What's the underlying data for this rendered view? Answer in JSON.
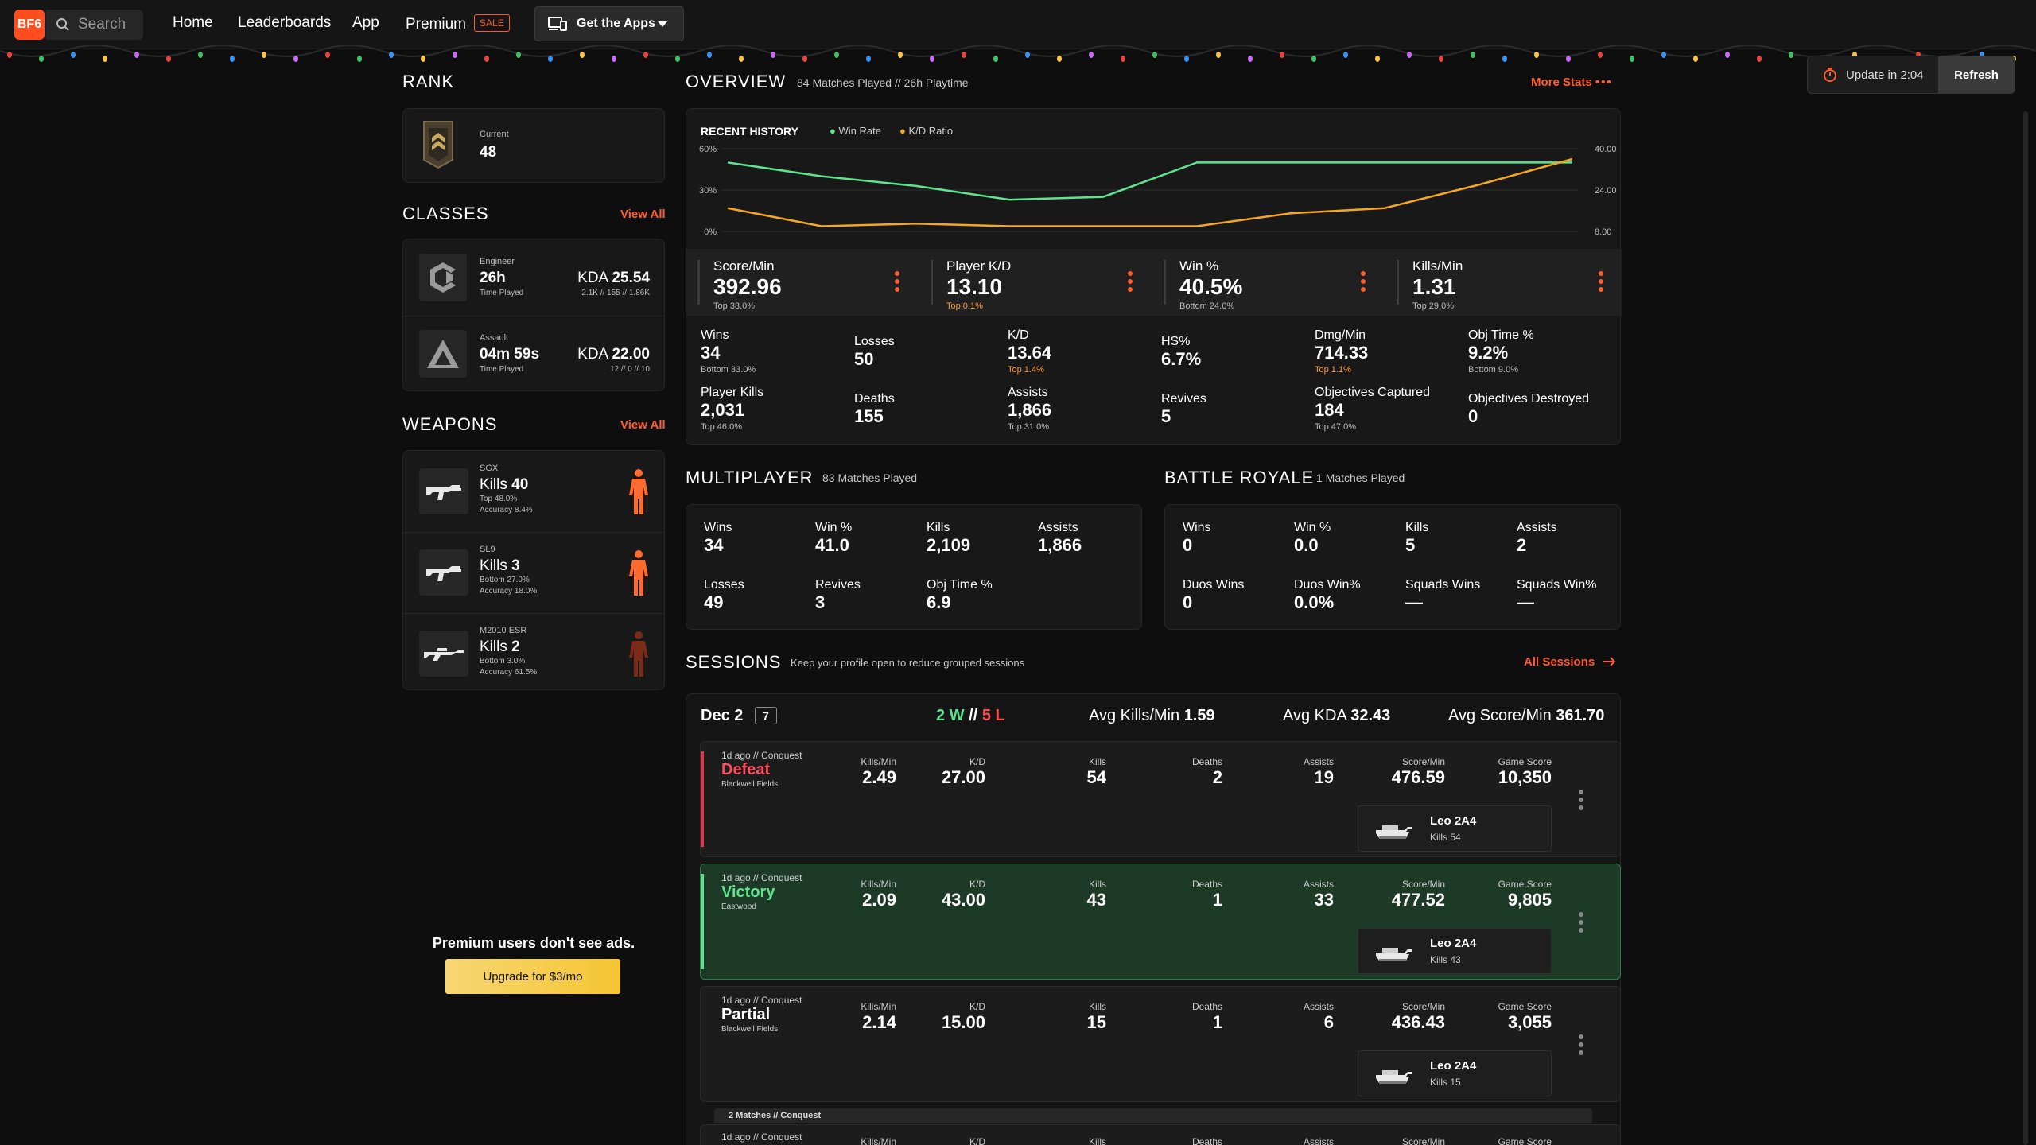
{
  "nav": {
    "logo": "BF6",
    "search_placeholder": "Search",
    "links": [
      "Home",
      "Leaderboards",
      "App",
      "Premium"
    ],
    "sale_badge": "SALE",
    "get_apps": "Get the Apps",
    "update": "Update in 2:04",
    "refresh": "Refresh"
  },
  "rank": {
    "title": "RANK",
    "label": "Current",
    "value": "48"
  },
  "classes": {
    "title": "CLASSES",
    "view_all": "View All",
    "items": [
      {
        "name": "Engineer",
        "time": "26h",
        "time_label": "Time Played",
        "kda_label": "KDA",
        "kda": "25.54",
        "detail": "2.1K // 155 // 1.86K"
      },
      {
        "name": "Assault",
        "time": "04m 59s",
        "time_label": "Time Played",
        "kda_label": "KDA",
        "kda": "22.00",
        "detail": "12 // 0 // 10"
      }
    ]
  },
  "weapons": {
    "title": "WEAPONS",
    "view_all": "View All",
    "items": [
      {
        "name": "SGX",
        "kills_label": "Kills",
        "kills": "40",
        "rank": "Top 48.0%",
        "accuracy": "Accuracy 8.4%"
      },
      {
        "name": "SL9",
        "kills_label": "Kills",
        "kills": "3",
        "rank": "Bottom 27.0%",
        "accuracy": "Accuracy 18.0%"
      },
      {
        "name": "M2010 ESR",
        "kills_label": "Kills",
        "kills": "2",
        "rank": "Bottom 3.0%",
        "accuracy": "Accuracy 61.5%"
      }
    ]
  },
  "ad": {
    "text": "Premium users don't see ads.",
    "button": "Upgrade for $3/mo"
  },
  "overview": {
    "title": "OVERVIEW",
    "subtitle": "84 Matches Played // 26h Playtime",
    "more_stats": "More Stats",
    "recent_history": "RECENT HISTORY",
    "legend_win": "Win Rate",
    "legend_kd": "K/D Ratio",
    "top_stats": [
      {
        "label": "Score/Min",
        "value": "392.96",
        "rank": "Top 38.0%"
      },
      {
        "label": "Player K/D",
        "value": "13.10",
        "rank": "Top 0.1%"
      },
      {
        "label": "Win %",
        "value": "40.5%",
        "rank": "Bottom 24.0%"
      },
      {
        "label": "Kills/Min",
        "value": "1.31",
        "rank": "Top 29.0%"
      }
    ],
    "grid": [
      {
        "label": "Wins",
        "value": "34",
        "rank": "Bottom 33.0%"
      },
      {
        "label": "Losses",
        "value": "50",
        "rank": ""
      },
      {
        "label": "K/D",
        "value": "13.64",
        "rank": "Top 1.4%"
      },
      {
        "label": "HS%",
        "value": "6.7%",
        "rank": ""
      },
      {
        "label": "Dmg/Min",
        "value": "714.33",
        "rank": "Top 1.1%"
      },
      {
        "label": "Obj Time %",
        "value": "9.2%",
        "rank": "Bottom 9.0%"
      },
      {
        "label": "Player Kills",
        "value": "2,031",
        "rank": "Top 46.0%"
      },
      {
        "label": "Deaths",
        "value": "155",
        "rank": ""
      },
      {
        "label": "Assists",
        "value": "1,866",
        "rank": "Top 31.0%"
      },
      {
        "label": "Revives",
        "value": "5",
        "rank": ""
      },
      {
        "label": "Objectives Captured",
        "value": "184",
        "rank": "Top 47.0%"
      },
      {
        "label": "Objectives Destroyed",
        "value": "0",
        "rank": ""
      }
    ]
  },
  "chart_data": {
    "type": "line",
    "x": [
      1,
      2,
      3,
      4,
      5,
      6,
      7,
      8,
      9,
      10
    ],
    "series": [
      {
        "name": "Win Rate",
        "color": "#5ee38f",
        "axis": "left",
        "values": [
          50,
          40,
          33,
          23,
          25,
          50,
          50,
          50,
          50,
          50
        ]
      },
      {
        "name": "K/D Ratio",
        "color": "#f5a623",
        "axis": "right",
        "values": [
          17,
          10,
          11,
          10,
          10,
          10,
          15,
          17,
          26,
          36
        ]
      }
    ],
    "left_ticks": [
      "60%",
      "30%",
      "0%"
    ],
    "right_ticks": [
      "40.00",
      "24.00",
      "8.00"
    ],
    "ylim_left": [
      0,
      60
    ],
    "ylim_right": [
      8,
      40
    ]
  },
  "multiplayer": {
    "title": "MULTIPLAYER",
    "subtitle": "83 Matches Played",
    "stats": [
      {
        "label": "Wins",
        "value": "34"
      },
      {
        "label": "Win %",
        "value": "41.0"
      },
      {
        "label": "Kills",
        "value": "2,109"
      },
      {
        "label": "Assists",
        "value": "1,866"
      },
      {
        "label": "Losses",
        "value": "49"
      },
      {
        "label": "Revives",
        "value": "3"
      },
      {
        "label": "Obj Time %",
        "value": "6.9"
      }
    ]
  },
  "battle_royale": {
    "title": "BATTLE ROYALE",
    "subtitle": "1 Matches Played",
    "stats": [
      {
        "label": "Wins",
        "value": "0"
      },
      {
        "label": "Win %",
        "value": "0.0"
      },
      {
        "label": "Kills",
        "value": "5"
      },
      {
        "label": "Assists",
        "value": "2"
      },
      {
        "label": "Duos Wins",
        "value": "0"
      },
      {
        "label": "Duos Win%",
        "value": "0.0%"
      },
      {
        "label": "Squads Wins",
        "value": "—"
      },
      {
        "label": "Squads Win%",
        "value": "—"
      }
    ]
  },
  "sessions": {
    "title": "SESSIONS",
    "subtitle": "Keep your profile open to reduce grouped sessions",
    "all_sessions": "All Sessions",
    "day": {
      "date": "Dec 2",
      "count": "7",
      "wins": "2 W",
      "sep": "//",
      "losses": "5 L",
      "avg_kpm_label": "Avg Kills/Min",
      "avg_kpm": "1.59",
      "avg_kda_label": "Avg KDA",
      "avg_kda": "32.43",
      "avg_spm_label": "Avg Score/Min",
      "avg_spm": "361.70"
    },
    "headers": [
      "Kills/Min",
      "K/D",
      "Kills",
      "Deaths",
      "Assists",
      "Score/Min",
      "Game Score"
    ],
    "matches": [
      {
        "meta": "1d ago // Conquest",
        "result": "Defeat",
        "map": "Blackwell Fields",
        "values": [
          "2.49",
          "27.00",
          "54",
          "2",
          "19",
          "476.59",
          "10,350"
        ],
        "vehicle": "Leo 2A4",
        "vehicle_kills": "Kills 54"
      },
      {
        "meta": "1d ago // Conquest",
        "result": "Victory",
        "map": "Eastwood",
        "values": [
          "2.09",
          "43.00",
          "43",
          "1",
          "33",
          "477.52",
          "9,805"
        ],
        "vehicle": "Leo 2A4",
        "vehicle_kills": "Kills 43"
      },
      {
        "meta": "1d ago // Conquest",
        "result": "Partial",
        "map": "Blackwell Fields",
        "values": [
          "2.14",
          "15.00",
          "15",
          "1",
          "6",
          "436.43",
          "3,055"
        ],
        "vehicle": "Leo 2A4",
        "vehicle_kills": "Kills 15"
      }
    ],
    "group_label": "2 Matches // Conquest",
    "next_meta": "1d ago // Conquest"
  }
}
